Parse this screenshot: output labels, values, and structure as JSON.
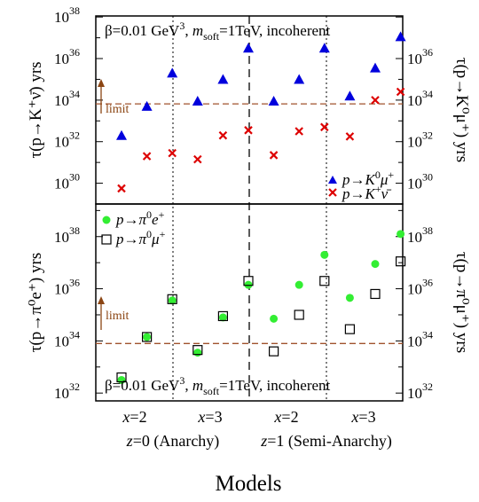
{
  "chart_data": [
    {
      "type": "scatter",
      "panel": "top",
      "yscale": "log",
      "ylim_exponent": [
        29,
        38
      ],
      "annotation": "β=0.01 GeV³, m_soft=1TeV, incoherent",
      "annotation_parts": {
        "pre": "β=0.01 GeV",
        "sup": "3",
        "mid": ", ",
        "m": "m",
        "sub": "soft",
        "post": "=1TeV, incoherent"
      },
      "ylabel_left": "τ(p→K⁺ν̄) yrs",
      "ylabel_right": "τ(p→K⁰μ⁺) yrs",
      "yticks_left": [
        {
          "base": "10",
          "exp": "30",
          "v": 30
        },
        {
          "base": "10",
          "exp": "32",
          "v": 32
        },
        {
          "base": "10",
          "exp": "34",
          "v": 34
        },
        {
          "base": "10",
          "exp": "36",
          "v": 36
        },
        {
          "base": "10",
          "exp": "38",
          "v": 38
        }
      ],
      "yticks_right": [
        {
          "base": "10",
          "exp": "30",
          "v": 30
        },
        {
          "base": "10",
          "exp": "32",
          "v": 32
        },
        {
          "base": "10",
          "exp": "34",
          "v": 34
        },
        {
          "base": "10",
          "exp": "36",
          "v": 36
        }
      ],
      "limit": {
        "label": "limit",
        "log10": 33.82
      },
      "x": [
        1,
        2,
        3,
        4,
        5,
        6,
        7,
        8,
        9,
        10,
        11,
        12
      ],
      "series": [
        {
          "name": "p→K⁰μ⁺",
          "marker": "triangle",
          "color": "#0000dd",
          "log10": [
            32.3,
            33.7,
            35.3,
            33.95,
            35.0,
            36.5,
            33.95,
            35.0,
            36.5,
            34.2,
            35.55,
            37.05
          ]
        },
        {
          "name": "p→K⁺ν̄",
          "marker": "cross",
          "color": "#dd0000",
          "log10": [
            29.75,
            31.3,
            31.45,
            31.15,
            32.3,
            32.55,
            31.35,
            32.5,
            32.7,
            32.25,
            34.0,
            34.4
          ]
        }
      ]
    },
    {
      "type": "scatter",
      "panel": "bottom",
      "yscale": "log",
      "ylim_exponent": [
        31.7,
        39.2
      ],
      "annotation": "β=0.01 GeV³, m_soft=1TeV, incoherent",
      "annotation_parts": {
        "pre": "β=0.01 GeV",
        "sup": "3",
        "mid": ", ",
        "m": "m",
        "sub": "soft",
        "post": "=1TeV, incoherent"
      },
      "ylabel_left": "τ(p→π⁰e⁺) yrs",
      "ylabel_right": "τ(p→π⁰μ⁺) yrs",
      "yticks_left": [
        {
          "base": "10",
          "exp": "32",
          "v": 32
        },
        {
          "base": "10",
          "exp": "34",
          "v": 34
        },
        {
          "base": "10",
          "exp": "36",
          "v": 36
        },
        {
          "base": "10",
          "exp": "38",
          "v": 38
        }
      ],
      "yticks_right": [
        {
          "base": "10",
          "exp": "32",
          "v": 32
        },
        {
          "base": "10",
          "exp": "34",
          "v": 34
        },
        {
          "base": "10",
          "exp": "36",
          "v": 36
        },
        {
          "base": "10",
          "exp": "38",
          "v": 38
        }
      ],
      "limit": {
        "label": "limit",
        "log10": 33.9
      },
      "x": [
        1,
        2,
        3,
        4,
        5,
        6,
        7,
        8,
        9,
        10,
        11,
        12
      ],
      "series": [
        {
          "name": "p→π⁰e⁺",
          "marker": "circle",
          "color": "#33ee33",
          "log10": [
            32.5,
            34.15,
            35.55,
            33.55,
            34.9,
            36.15,
            34.85,
            36.15,
            37.3,
            35.65,
            36.95,
            38.1
          ]
        },
        {
          "name": "p→π⁰μ⁺",
          "marker": "square",
          "color": "#000000",
          "log10": [
            32.6,
            34.15,
            35.6,
            33.65,
            34.95,
            36.3,
            33.6,
            35.0,
            36.3,
            34.45,
            35.8,
            37.05
          ]
        }
      ]
    }
  ],
  "legend_top": [
    {
      "pre": "p→K",
      "sup": "0",
      "post": "μ",
      "sup2": "+"
    },
    {
      "pre": "p→K",
      "sup": "+",
      "post": "ν̄",
      "sup2": ""
    }
  ],
  "legend_bottom": [
    {
      "pre": "p→π",
      "sup": "0",
      "post": "e",
      "sup2": "+"
    },
    {
      "pre": "p→π",
      "sup": "0",
      "post": "μ",
      "sup2": "+"
    }
  ],
  "x_categories": [
    {
      "var": "x",
      "val": "=2"
    },
    {
      "var": "x",
      "val": "=3"
    },
    {
      "var": "x",
      "val": "=2"
    },
    {
      "var": "x",
      "val": "=3"
    }
  ],
  "x_groups": [
    {
      "var": "z",
      "val": "=0 (Anarchy)"
    },
    {
      "var": "z",
      "val": "=1 (Semi-Anarchy)"
    }
  ],
  "xlabel": "Models"
}
